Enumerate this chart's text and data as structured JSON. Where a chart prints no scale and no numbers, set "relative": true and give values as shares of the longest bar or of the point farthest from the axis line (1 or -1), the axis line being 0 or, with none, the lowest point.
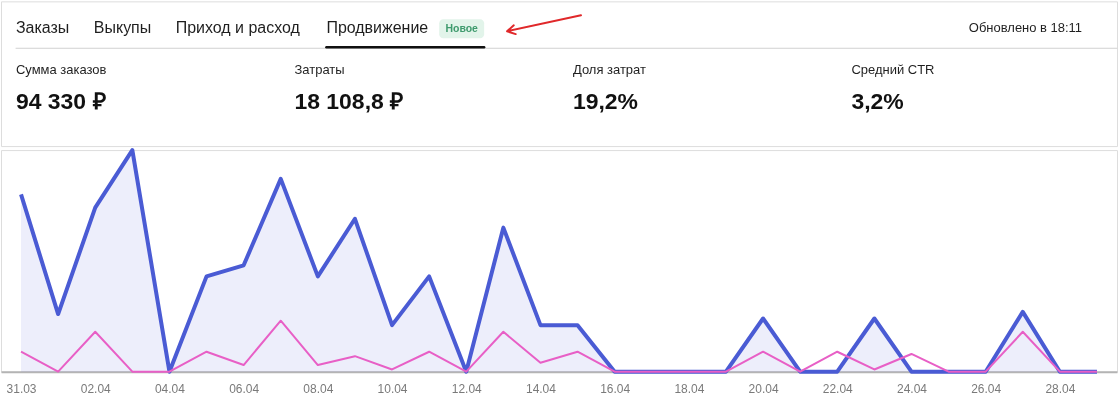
{
  "chart_data": [
    {
      "type": "other",
      "annotations": [
        "Заказы",
        "Выкупы",
        "Приход и расход",
        "Продвижение",
        "Новое",
        "Обновлено в 18:11",
        "Сумма заказов",
        "94 330 ₽",
        "Затраты",
        "18 108,8 ₽",
        "Доля затрат",
        "19,2%",
        "Средний CTR",
        "3,2%"
      ]
    },
    {
      "type": "line",
      "relative": true,
      "categories": [
        "31.03",
        null,
        "02.04",
        null,
        "04.04",
        null,
        "06.04",
        null,
        "08.04",
        null,
        "10.04",
        null,
        "12.04",
        null,
        "14.04",
        null,
        "16.04",
        null,
        "18.04",
        null,
        "20.04",
        null,
        "22.04",
        null,
        "24.04",
        null,
        "26.04",
        null,
        "28.04",
        null
      ],
      "series": [
        {
          "type": "area",
          "color": "#4a5bd4",
          "values": [
            0.8,
            0.26,
            0.74,
            1,
            0,
            0.43,
            0.48,
            0.87,
            0.43,
            0.69,
            0.21,
            0.43,
            0,
            0.65,
            0.21,
            0.21,
            0,
            0,
            0,
            0,
            0.24,
            0,
            0,
            0.24,
            0,
            0,
            0,
            0.27,
            0,
            0
          ]
        },
        {
          "type": "line",
          "color": "#e85fc6",
          "values": [
            0.09,
            0,
            0.18,
            0,
            0,
            0.09,
            0.03,
            0.23,
            0.03,
            0.07,
            0.01,
            0.09,
            0,
            0.18,
            0.04,
            0.09,
            0,
            0,
            0,
            0,
            0.09,
            0,
            0.09,
            0.01,
            0.08,
            0,
            0,
            0.18,
            0,
            0
          ]
        }
      ]
    }
  ]
}
